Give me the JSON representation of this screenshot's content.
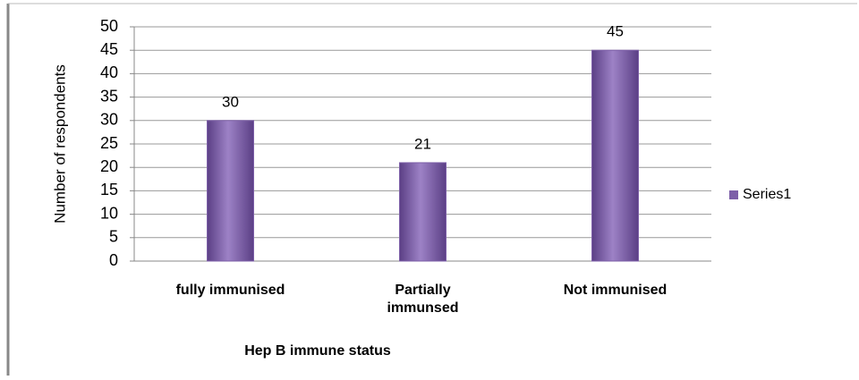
{
  "chart_data": {
    "type": "bar",
    "x_label": "Hep B immune status",
    "y_label": "Number of respondents",
    "categories": [
      "fully immunised",
      "Partially immunsed",
      "Not immunised"
    ],
    "series": [
      {
        "name": "Series1",
        "color": "#7d5fa8",
        "values": [
          30,
          21,
          45
        ]
      }
    ],
    "ylim": [
      0,
      50
    ],
    "yticks": [
      0,
      5,
      10,
      15,
      20,
      25,
      30,
      35,
      40,
      45,
      50
    ],
    "grid": true,
    "legend": "right"
  }
}
